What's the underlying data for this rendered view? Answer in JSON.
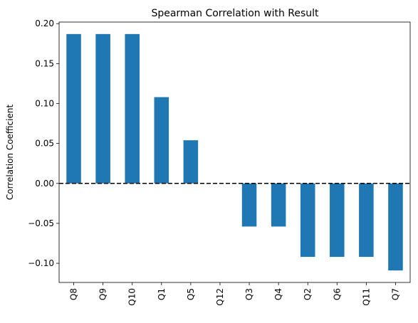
{
  "chart_data": {
    "type": "bar",
    "title": "Spearman Correlation with Result",
    "xlabel": "",
    "ylabel": "Correlation Coefficient",
    "categories": [
      "Q8",
      "Q9",
      "Q10",
      "Q1",
      "Q5",
      "Q12",
      "Q3",
      "Q4",
      "Q2",
      "Q6",
      "Q11",
      "Q7"
    ],
    "values": [
      0.187,
      0.187,
      0.187,
      0.108,
      0.054,
      0.0,
      -0.054,
      -0.054,
      -0.092,
      -0.092,
      -0.092,
      -0.109
    ],
    "ylim": [
      -0.124,
      0.202
    ],
    "yticks": [
      -0.1,
      -0.05,
      0.0,
      0.05,
      0.1,
      0.15,
      0.2
    ],
    "ytick_labels": [
      "−0.10",
      "−0.05",
      "0.00",
      "0.05",
      "0.10",
      "0.15",
      "0.20"
    ],
    "reference_line": {
      "y": 0.0,
      "style": "dashed",
      "color": "#000000"
    },
    "bar_color": "#1f77b4",
    "grid": false,
    "legend": "none"
  }
}
